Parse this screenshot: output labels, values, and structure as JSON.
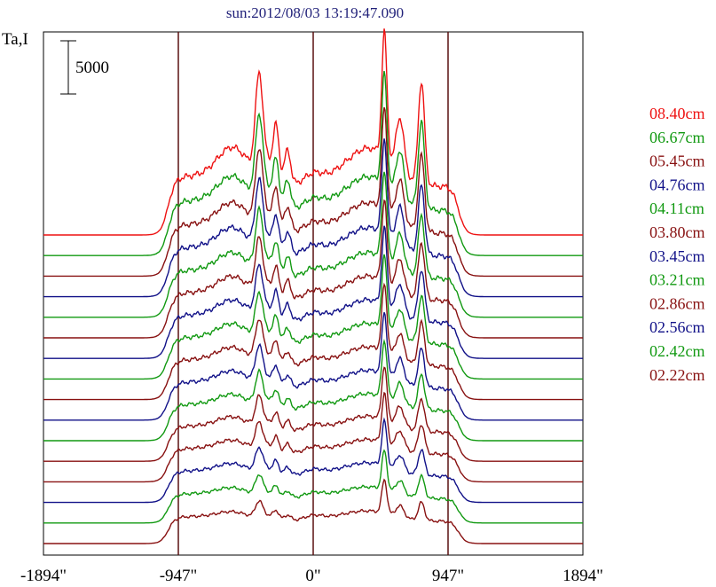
{
  "chart_data": {
    "type": "line",
    "title": "sun:2012/08/03 13:19:47.090",
    "ylabel": "Ta,I",
    "scale_bar_label": "5000",
    "scale_bar_value": 5000,
    "xlim": [
      -1894,
      1894
    ],
    "x_ticks": [
      {
        "value": -1894,
        "label": "-1894\""
      },
      {
        "value": -947,
        "label": "-947\""
      },
      {
        "value": 0,
        "label": "0\""
      },
      {
        "value": 947,
        "label": "947\""
      },
      {
        "value": 1894,
        "label": "1894\""
      }
    ],
    "vertical_lines": [
      -947,
      0,
      947
    ],
    "grid": false,
    "legend_position": "right",
    "series": [
      {
        "name": "08.40cm",
        "color": "#ee1111",
        "baseline": 0,
        "amp": 1.0
      },
      {
        "name": "06.67cm",
        "color": "#119911",
        "baseline": 1,
        "amp": 0.93
      },
      {
        "name": "05.45cm",
        "color": "#881111",
        "baseline": 2,
        "amp": 0.88
      },
      {
        "name": "04.76cm",
        "color": "#111188",
        "baseline": 3,
        "amp": 0.84
      },
      {
        "name": "04.11cm",
        "color": "#119911",
        "baseline": 4,
        "amp": 0.8
      },
      {
        "name": "03.80cm",
        "color": "#881111",
        "baseline": 5,
        "amp": 0.77
      },
      {
        "name": "03.45cm",
        "color": "#111188",
        "baseline": 6,
        "amp": 0.74
      },
      {
        "name": "03.21cm",
        "color": "#119911",
        "baseline": 7,
        "amp": 0.71
      },
      {
        "name": "02.86cm",
        "color": "#881111",
        "baseline": 8,
        "amp": 0.68
      },
      {
        "name": "02.56cm",
        "color": "#111188",
        "baseline": 9,
        "amp": 0.65
      },
      {
        "name": "02.42cm",
        "color": "#119911",
        "baseline": 10,
        "amp": 0.62
      },
      {
        "name": "02.22cm",
        "color": "#881111",
        "baseline": 11,
        "amp": 0.6
      },
      {
        "name": "",
        "color": "#881111",
        "baseline": 12,
        "amp": 0.57
      },
      {
        "name": "",
        "color": "#111188",
        "baseline": 13,
        "amp": 0.54
      },
      {
        "name": "",
        "color": "#119911",
        "baseline": 14,
        "amp": 0.5
      },
      {
        "name": "",
        "color": "#881111",
        "baseline": 15,
        "amp": 0.46
      }
    ]
  }
}
